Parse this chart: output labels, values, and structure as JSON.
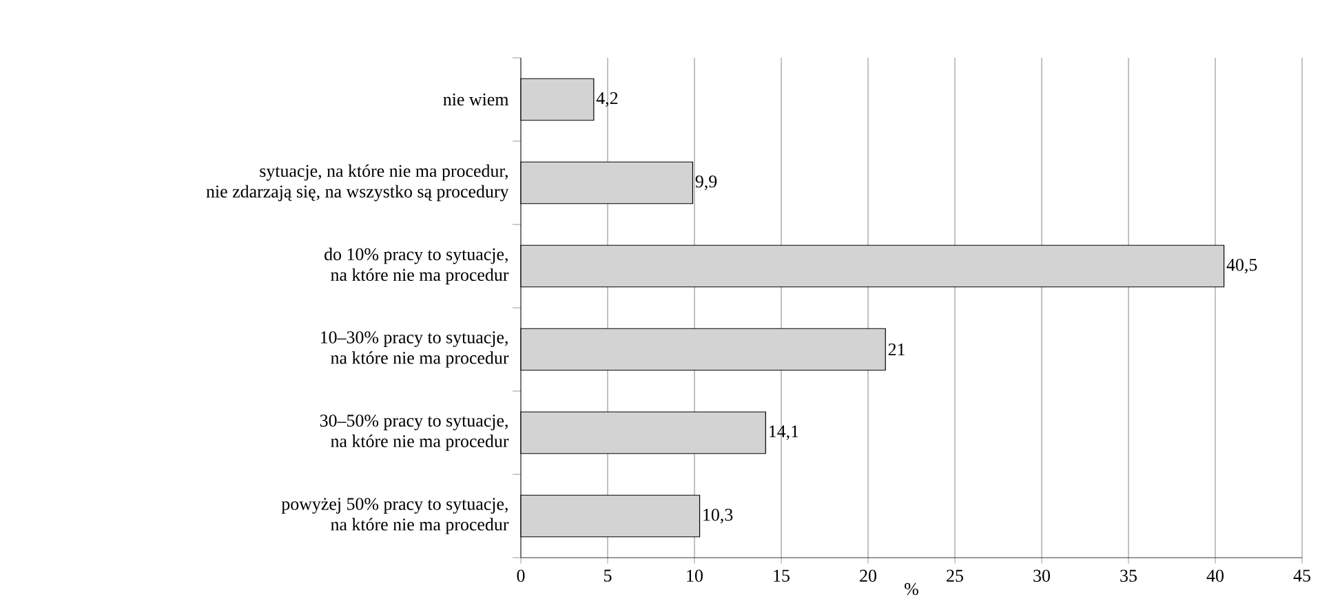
{
  "chart_data": {
    "type": "bar",
    "orientation": "horizontal",
    "xlabel": "%",
    "categories": [
      "nie wiem",
      "sytuacje, na które nie ma procedur,\nnie zdarzają się, na wszystko są procedury",
      "do 10% pracy to sytuacje,\nna które nie ma procedur",
      "10–30% pracy to sytuacje,\nna które nie ma procedur",
      "30–50% pracy to sytuacje,\nna które nie ma procedur",
      "powyżej 50% pracy to sytuacje,\nna które nie ma procedur"
    ],
    "values": [
      4.2,
      9.9,
      40.5,
      21,
      14.1,
      10.3
    ],
    "value_labels": [
      "4,2",
      "9,9",
      "40,5",
      "21",
      "14,1",
      "10,3"
    ],
    "color": "#d3d3d3",
    "xlim": [
      0,
      45
    ],
    "xticks": [
      0,
      5,
      10,
      15,
      20,
      25,
      30,
      35,
      40,
      45
    ],
    "grid": "x"
  }
}
